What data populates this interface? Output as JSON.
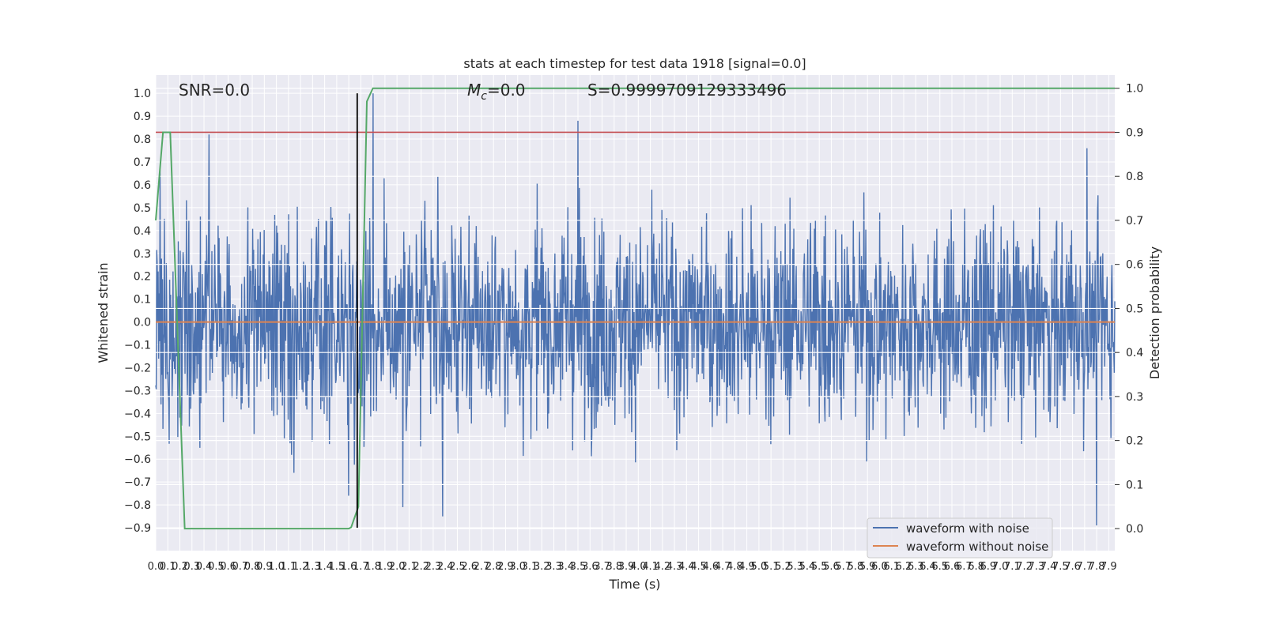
{
  "chart_data": {
    "type": "line",
    "title": "stats at each timestep for test data 1918 [signal=0.0]",
    "xlabel": "Time (s)",
    "ylabel_left": "Whitened strain",
    "ylabel_right": "Detection probability",
    "xlim": [
      0.0,
      7.95
    ],
    "ylim_left": [
      -1.0,
      1.08
    ],
    "ylim_right": [
      -0.05,
      1.03
    ],
    "x_ticks": [
      "0.0",
      "0.1",
      "0.2",
      "0.3",
      "0.4",
      "0.5",
      "0.6",
      "0.7",
      "0.8",
      "0.9",
      "1.0",
      "1.1",
      "1.2",
      "1.3",
      "1.4",
      "1.5",
      "1.6",
      "1.7",
      "1.8",
      "1.9",
      "2.0",
      "2.1",
      "2.2",
      "2.3",
      "2.4",
      "2.5",
      "2.6",
      "2.7",
      "2.8",
      "2.9",
      "3.0",
      "3.1",
      "3.2",
      "3.3",
      "3.4",
      "3.5",
      "3.6",
      "3.7",
      "3.8",
      "3.9",
      "4.0",
      "4.1",
      "4.2",
      "4.3",
      "4.4",
      "4.5",
      "4.6",
      "4.7",
      "4.8",
      "4.9",
      "5.0",
      "5.1",
      "5.2",
      "5.3",
      "5.4",
      "5.5",
      "5.6",
      "5.7",
      "5.8",
      "5.9",
      "6.0",
      "6.1",
      "6.2",
      "6.3",
      "6.4",
      "6.5",
      "6.6",
      "6.7",
      "6.8",
      "6.9",
      "7.0",
      "7.1",
      "7.2",
      "7.3",
      "7.4",
      "7.5",
      "7.6",
      "7.7",
      "7.8",
      "7.9"
    ],
    "y_ticks_left": [
      "-0.9",
      "-0.8",
      "-0.7",
      "-0.6",
      "-0.5",
      "-0.4",
      "-0.3",
      "-0.2",
      "-0.1",
      "0.0",
      "0.1",
      "0.2",
      "0.3",
      "0.4",
      "0.5",
      "0.6",
      "0.7",
      "0.8",
      "0.9",
      "1.0"
    ],
    "y_ticks_right": [
      "0.0",
      "0.1",
      "0.2",
      "0.3",
      "0.4",
      "0.5",
      "0.6",
      "0.7",
      "0.8",
      "0.9",
      "1.0"
    ],
    "grid": true,
    "legend_position": "lower-right",
    "series": [
      {
        "name": "waveform with noise",
        "axis": "left",
        "color": "#4c72b0",
        "noise": {
          "n_points": 2000,
          "typical_amplitude": 0.36,
          "seed": 1918
        },
        "spikes": [
          {
            "x": 0.44,
            "y": 0.82
          },
          {
            "x": 1.8,
            "y": 1.0
          },
          {
            "x": 3.5,
            "y": 0.88
          },
          {
            "x": 1.6,
            "y": -0.76
          },
          {
            "x": 2.05,
            "y": -0.81
          },
          {
            "x": 2.38,
            "y": -0.85
          },
          {
            "x": 7.8,
            "y": -0.89
          },
          {
            "x": 7.72,
            "y": 0.76
          }
        ]
      },
      {
        "name": "waveform without noise",
        "axis": "left",
        "color": "#dd8452",
        "x": [
          0.0,
          7.95
        ],
        "y": [
          0.0,
          0.0
        ]
      },
      {
        "axis": "right",
        "color": "#55a868",
        "x": [
          0.0,
          0.06,
          0.12,
          0.24,
          0.4,
          0.8,
          1.2,
          1.6,
          1.62,
          1.68,
          1.75,
          1.8,
          7.95
        ],
        "y": [
          0.7,
          0.9,
          0.9,
          0.0,
          0.0,
          0.0,
          0.0,
          0.0,
          0.003,
          0.05,
          0.97,
          1.0,
          1.0
        ]
      }
    ],
    "threshold": {
      "axis": "right",
      "y": 0.9,
      "color": "#c44e52"
    },
    "marker_line": {
      "axis": "left",
      "x": 1.67,
      "y_from": -0.9,
      "y_to": 1.0,
      "color": "#000000"
    },
    "annotations": {
      "snr": "SNR=0.0",
      "mc_symbol": "M",
      "mc_sub": "c",
      "mc_value": "=0.0",
      "s": "S=0.9999709129333496"
    }
  },
  "colors": {
    "plot_bg": "#eaeaf2",
    "grid": "#ffffff"
  }
}
